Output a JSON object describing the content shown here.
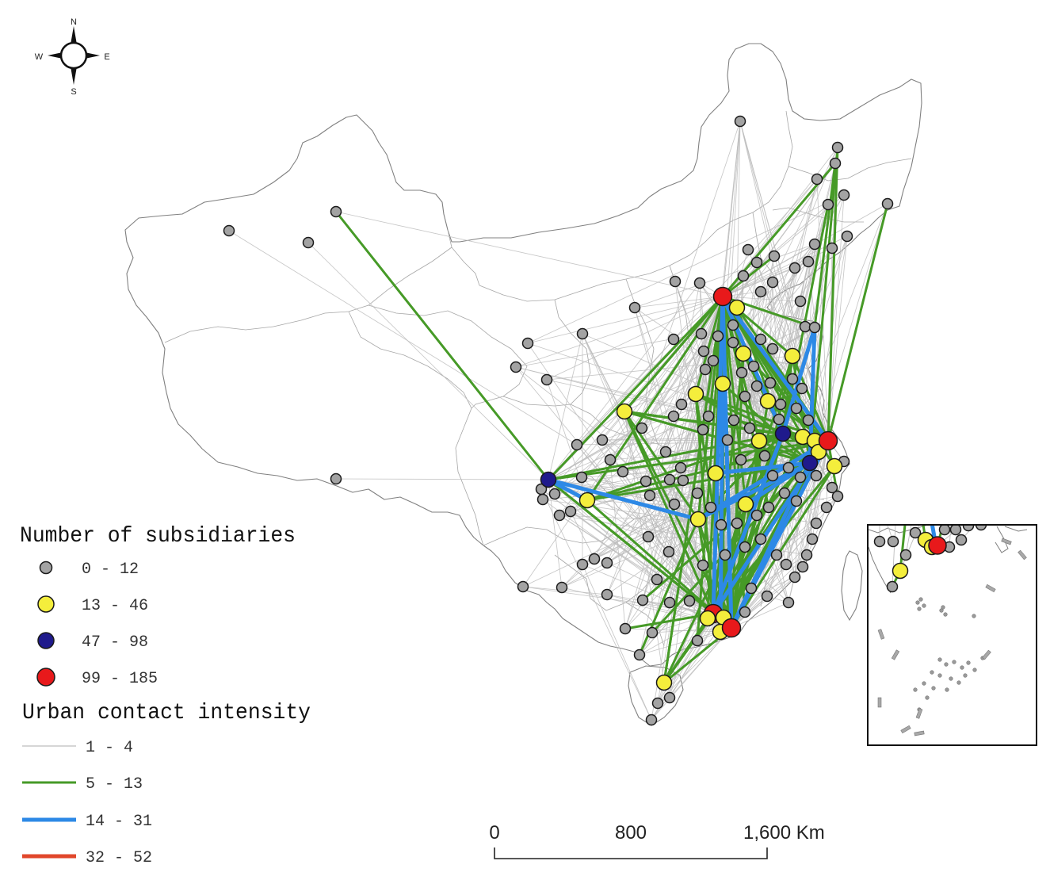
{
  "compass": {
    "north": "N",
    "east": "E",
    "south": "S",
    "west": "W"
  },
  "legend_nodes": {
    "title": "Number of subsidiaries",
    "items": [
      {
        "label": "0 - 12",
        "color": "#a3a3a3"
      },
      {
        "label": "13 - 46",
        "color": "#f4ee3c"
      },
      {
        "label": "47 - 98",
        "color": "#1f1a8c"
      },
      {
        "label": "99 - 185",
        "color": "#e8191b"
      }
    ]
  },
  "legend_links": {
    "title": "Urban contact intensity",
    "items": [
      {
        "label": "1 - 4",
        "color": "#bdbdbd"
      },
      {
        "label": "5 - 13",
        "color": "#469a27"
      },
      {
        "label": "14 - 31",
        "color": "#2d89e6"
      },
      {
        "label": "32 - 52",
        "color": "#e1472b"
      }
    ]
  },
  "scale_bar": {
    "labels": [
      "0",
      "800",
      "1,600 Km"
    ]
  },
  "map_colors": {
    "outline": "#808080",
    "province_border": "#a6a6a6",
    "node_stroke": "#1a1a1a"
  }
}
